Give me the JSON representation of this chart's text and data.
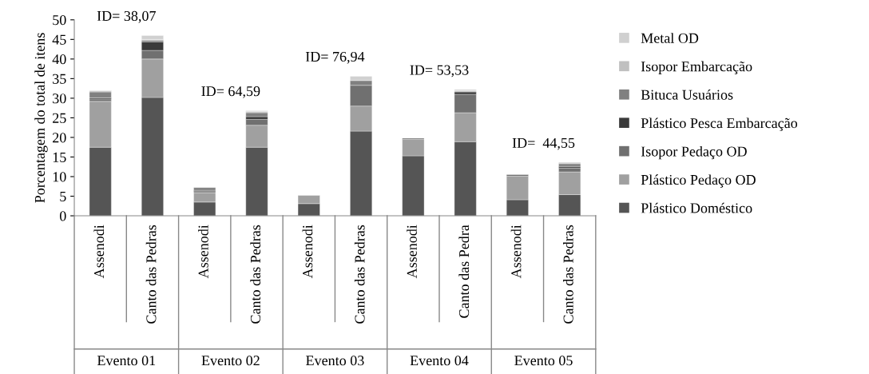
{
  "chart_data": {
    "type": "bar",
    "stacked": true,
    "ylabel": "Porcentagem do total de itens",
    "categories": [
      "Assenodi",
      "Canto das Pedras",
      "Assenodi",
      "Canto das Pedras",
      "Assenodi",
      "Canto das Pedras",
      "Assenodi",
      "Canto das Pedra",
      "Assenodi",
      "Canto das Pedras"
    ],
    "series": [
      {
        "name": "Plástico Doméstico",
        "color": "#555555",
        "values": [
          17.5,
          30.2,
          3.5,
          17.5,
          3.1,
          21.6,
          15.3,
          18.9,
          4.1,
          5.4
        ]
      },
      {
        "name": "Plástico Pedaço OD",
        "color": "#a0a0a0",
        "values": [
          11.7,
          9.8,
          2.4,
          5.6,
          2.1,
          6.4,
          4.2,
          7.4,
          6.0,
          5.8
        ]
      },
      {
        "name": "Isopor Pedaço OD",
        "color": "#707070",
        "values": [
          0.6,
          2.2,
          0.3,
          1.5,
          0,
          5.3,
          0.3,
          4.7,
          0.4,
          1.0
        ]
      },
      {
        "name": "Plástico Pesca Embarcação",
        "color": "#3a3a3a",
        "values": [
          0.3,
          2.2,
          0.3,
          0.7,
          0,
          0,
          0,
          0.6,
          0,
          0.4
        ]
      },
      {
        "name": "Bituca Usuários",
        "color": "#808080",
        "values": [
          1.5,
          0.4,
          0.7,
          1.0,
          0,
          1.2,
          0,
          0,
          0,
          0.7
        ]
      },
      {
        "name": "Isopor Embarcação",
        "color": "#c0c0c0",
        "values": [
          0.3,
          0.2,
          0,
          0.3,
          0,
          0,
          0,
          0.3,
          0,
          0.3
        ]
      },
      {
        "name": "Metal OD",
        "color": "#d0d0d0",
        "values": [
          0.1,
          1.0,
          0,
          0.2,
          0,
          1.1,
          0,
          0.3,
          0,
          0
        ]
      }
    ],
    "ylim": [
      0,
      50
    ],
    "yticks": [
      0,
      5,
      10,
      15,
      20,
      25,
      30,
      35,
      40,
      45,
      50
    ],
    "grid": false,
    "legend": "right",
    "annotations": [
      "ID= 38,07",
      "ID= 64,59",
      "ID= 76,94",
      "ID= 53,53",
      "ID=  44,55",
      "Evento 01",
      "Evento 02",
      "Evento 03",
      "Evento 04",
      "Evento 05"
    ]
  }
}
